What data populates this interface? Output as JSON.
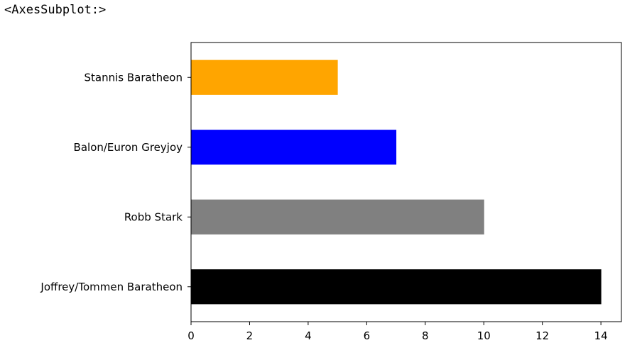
{
  "output": {
    "repr_text": "<AxesSubplot:>"
  },
  "chart_data": {
    "type": "bar",
    "orientation": "horizontal",
    "categories": [
      "Stannis Baratheon",
      "Balon/Euron Greyjoy",
      "Robb Stark",
      "Joffrey/Tommen Baratheon"
    ],
    "values": [
      5,
      7,
      10,
      14
    ],
    "colors": [
      "#ffa500",
      "#0000ff",
      "#808080",
      "#000000"
    ],
    "title": "",
    "xlabel": "",
    "ylabel": "",
    "xlim": [
      0,
      14.7
    ],
    "xticks": [
      0,
      2,
      4,
      6,
      8,
      10,
      12,
      14
    ],
    "grid": false,
    "legend": "none"
  }
}
